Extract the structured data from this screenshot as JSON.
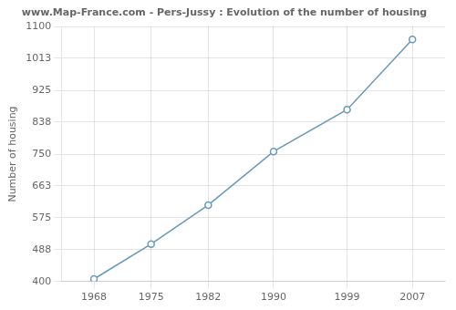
{
  "chart_data": {
    "type": "line",
    "title": "www.Map-France.com - Pers-Jussy : Evolution of the number of housing",
    "ylabel": "Number of housing",
    "x": [
      1968,
      1975,
      1982,
      1990,
      1999,
      2007
    ],
    "values": [
      407,
      503,
      610,
      757,
      872,
      1065
    ],
    "color": "#6699bb",
    "marker": "circle",
    "xlim": [
      1964,
      2011
    ],
    "ylim": [
      400,
      1100
    ],
    "xticks": [
      1968,
      1975,
      1982,
      1990,
      1999,
      2007
    ],
    "yticks": [
      400,
      488,
      575,
      663,
      750,
      838,
      925,
      1013,
      1100
    ],
    "grid": true
  }
}
